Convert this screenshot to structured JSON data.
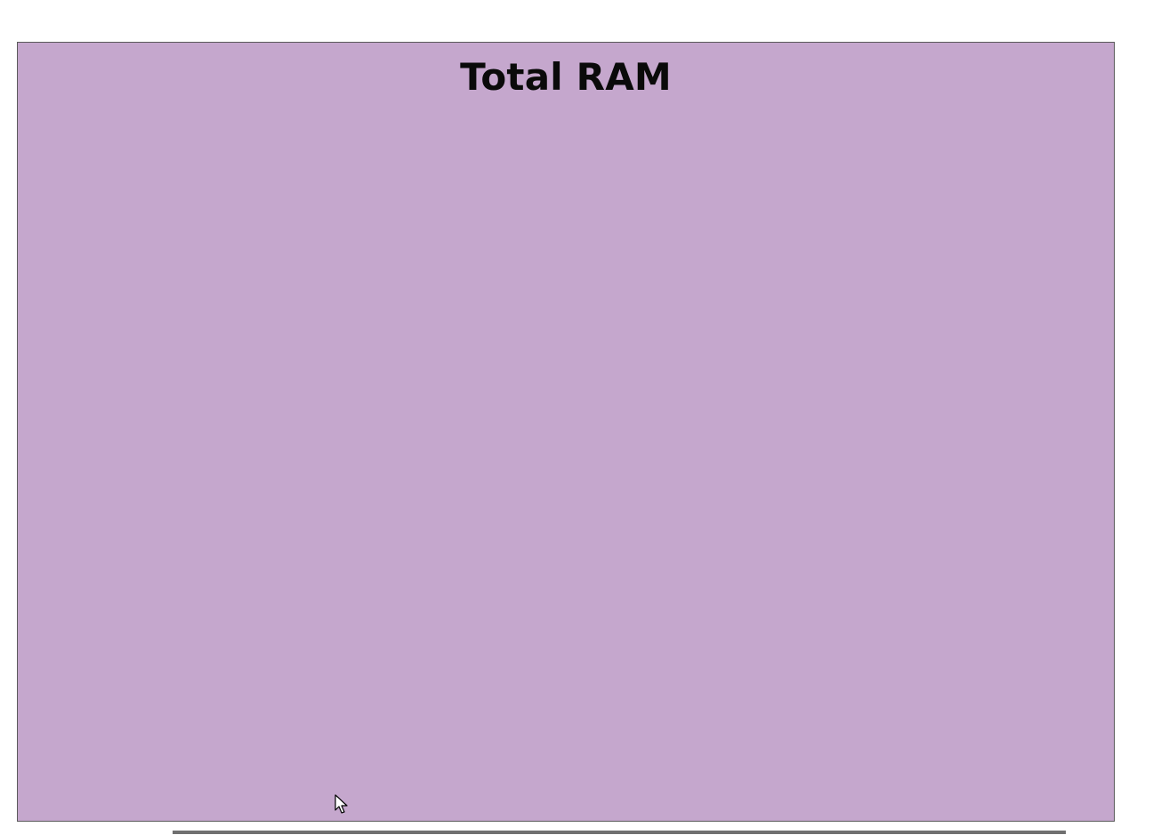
{
  "chart_panel": {
    "title": "Total RAM",
    "background_color": "#c5a7cd",
    "border_color": "#5a5a5a"
  },
  "cursor": {
    "icon": "mouse-pointer-icon"
  }
}
